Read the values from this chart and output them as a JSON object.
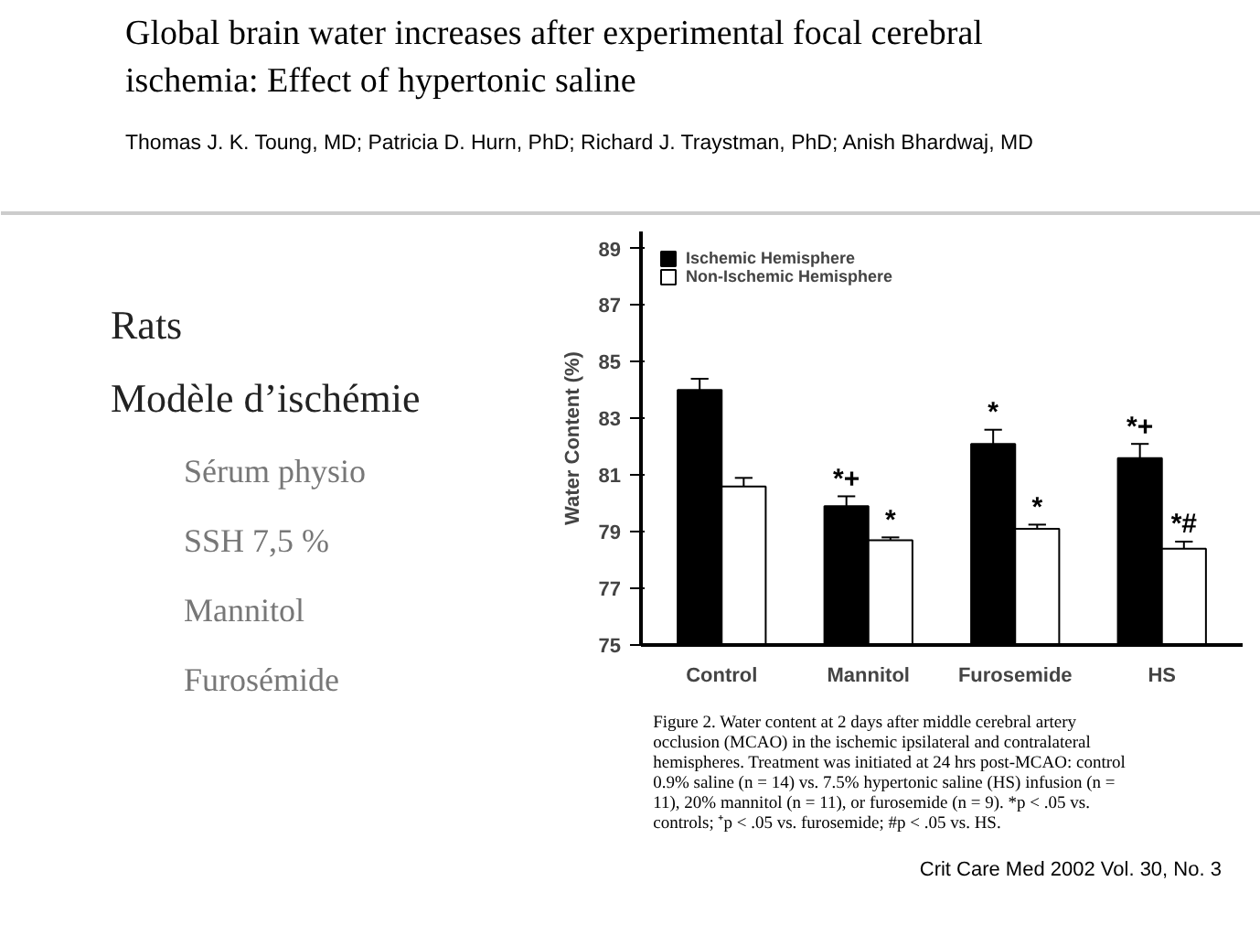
{
  "chart_data": {
    "type": "bar",
    "title": "Global brain water increases after experimental focal cerebral ischemia: Effect of hypertonic saline",
    "subtitle": "Thomas J. K. Toung, MD; Patricia D. Hurn, PhD; Richard J. Traystman, PhD; Anish Bhardwaj, MD",
    "ylabel": "Water Content (%)",
    "categories": [
      "Control",
      "Mannitol",
      "Furosemide",
      "HS"
    ],
    "series": [
      {
        "name": "Ischemic Hemisphere",
        "color": "#000000",
        "values": [
          84.0,
          79.9,
          82.1,
          81.6
        ],
        "errors": [
          0.4,
          0.35,
          0.5,
          0.5
        ]
      },
      {
        "name": "Non-Ischemic Hemisphere",
        "color": "#ffffff",
        "values": [
          80.6,
          78.7,
          79.1,
          78.4
        ],
        "errors": [
          0.3,
          0.1,
          0.15,
          0.25
        ]
      }
    ],
    "ylim": [
      75,
      89.6
    ],
    "yticks": [
      75,
      77,
      79,
      81,
      83,
      85,
      87,
      89
    ],
    "grid": false,
    "legend": "top left",
    "annotations": [
      {
        "text": "*+",
        "x": "Mannitol",
        "y": 79.9
      },
      {
        "text": "*",
        "x": "Mannitol",
        "y": 78.7
      },
      {
        "text": "*",
        "x": "Furosemide",
        "y": 82.1
      },
      {
        "text": "*",
        "x": "Furosemide",
        "y": 79.1
      },
      {
        "text": "*+",
        "x": "HS",
        "y": 81.6
      },
      {
        "text": "*#",
        "x": "HS",
        "y": 78.4
      },
      "Rats",
      "Modèle d’ischémie",
      "Sérum physio",
      "SSH 7,5 %",
      "Mannitol",
      "Furosémide",
      "Figure 2. Water content at 2 days after middle cerebral artery occlusion (MCAO) in the ischemic ipsilateral and contralateral hemispheres. Treatment was initiated at 24 hrs post-MCAO: control 0.9% saline (n = 14) vs. 7.5% hypertonic saline (HS) infusion (n = 11), 20% mannitol (n = 11), or furosemide (n = 9). *p < .05 vs. controls; ⁺p < .05 vs. furosemide; #p < .05 vs. HS.",
      "Crit Care Med 2002 Vol. 30, No. 3"
    ]
  }
}
